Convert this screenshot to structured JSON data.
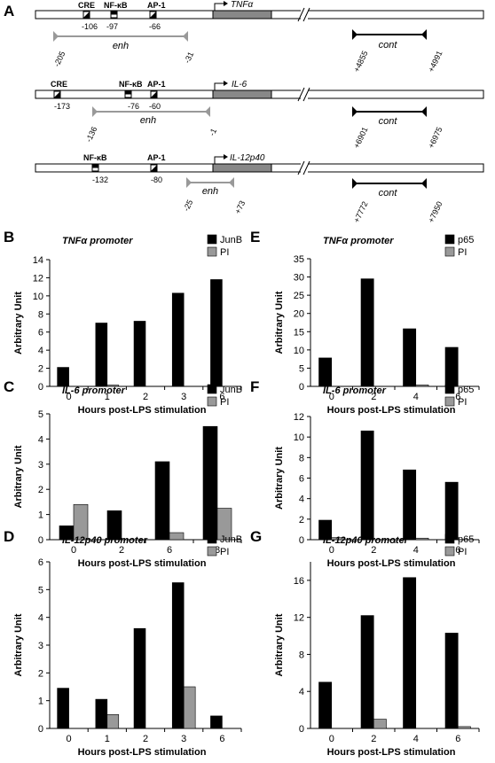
{
  "panel_a": {
    "letter": "A",
    "genes": [
      {
        "name": "TNFα",
        "sites": [
          {
            "label": "CRE",
            "pos": "-106"
          },
          {
            "label": "NF-κB",
            "pos": "-97"
          },
          {
            "label": "AP-1",
            "pos": "-66"
          }
        ],
        "enh": {
          "label": "enh",
          "start": "-205",
          "end": "-31"
        },
        "cont": {
          "label": "cont",
          "start": "+4855",
          "end": "+4991"
        }
      },
      {
        "name": "IL-6",
        "sites": [
          {
            "label": "CRE",
            "pos": "-173"
          },
          {
            "label": "NF-κB",
            "pos": "-76"
          },
          {
            "label": "AP-1",
            "pos": "-60"
          }
        ],
        "enh": {
          "label": "enh",
          "start": "-136",
          "end": "-1"
        },
        "cont": {
          "label": "cont",
          "start": "+6901",
          "end": "+6975"
        }
      },
      {
        "name": "IL-12p40",
        "sites": [
          {
            "label": "NF-κB",
            "pos": "-132"
          },
          {
            "label": "AP-1",
            "pos": "-80"
          }
        ],
        "enh": {
          "label": "enh",
          "start": "-25",
          "end": "+73"
        },
        "cont": {
          "label": "cont",
          "start": "+7772",
          "end": "+7950"
        }
      }
    ]
  },
  "colors": {
    "primary": "#000000",
    "secondary": "#999999",
    "enh_bracket": "#999999"
  },
  "chart_data": [
    {
      "id": "B",
      "type": "bar",
      "title": "TNFα promoter",
      "xlabel": "Hours post-LPS stimulation",
      "ylabel": "Arbitrary Unit",
      "categories": [
        "0",
        "1",
        "2",
        "3",
        "6"
      ],
      "ylim": [
        0,
        14
      ],
      "yticks": [
        "0",
        "2",
        "4",
        "6",
        "8",
        "10",
        "12",
        "14"
      ],
      "series": [
        {
          "name": "JunB",
          "values": [
            2.1,
            7.0,
            7.2,
            10.3,
            11.8
          ]
        },
        {
          "name": "PI",
          "values": [
            0,
            0.15,
            0,
            0,
            0
          ]
        }
      ],
      "legend": "top-right"
    },
    {
      "id": "C",
      "type": "bar",
      "title": "IL-6 promoter",
      "xlabel": "Hours post-LPS stimulation",
      "ylabel": "Arbitrary Unit",
      "categories": [
        "0",
        "2",
        "6",
        "8"
      ],
      "ylim": [
        0,
        5
      ],
      "yticks": [
        "0",
        "1",
        "2",
        "3",
        "4",
        "5"
      ],
      "series": [
        {
          "name": "JunB",
          "values": [
            0.55,
            1.15,
            3.1,
            4.5
          ]
        },
        {
          "name": "PI",
          "values": [
            1.4,
            0,
            0.28,
            1.25
          ]
        }
      ],
      "legend": "top-right"
    },
    {
      "id": "D",
      "type": "bar",
      "title": "IL-12p40 promoter",
      "xlabel": "Hours post-LPS stimulation",
      "ylabel": "Arbitrary Unit",
      "categories": [
        "0",
        "1",
        "2",
        "3",
        "6"
      ],
      "ylim": [
        0,
        6
      ],
      "yticks": [
        "0",
        "1",
        "2",
        "3",
        "4",
        "5",
        "6"
      ],
      "series": [
        {
          "name": "JunB",
          "values": [
            1.45,
            1.05,
            3.6,
            5.25,
            0.45
          ]
        },
        {
          "name": "PI",
          "values": [
            0,
            0.5,
            0,
            1.5,
            0
          ]
        }
      ],
      "legend": "top-right"
    },
    {
      "id": "E",
      "type": "bar",
      "title": "TNFα promoter",
      "xlabel": "Hours post-LPS stimulation",
      "ylabel": "Arbitrary Unit",
      "categories": [
        "0",
        "2",
        "4",
        "6"
      ],
      "ylim": [
        0,
        35
      ],
      "yticks": [
        "0",
        "5",
        "10",
        "15",
        "20",
        "25",
        "30",
        "35"
      ],
      "series": [
        {
          "name": "p65",
          "values": [
            7.8,
            29.5,
            15.8,
            10.7
          ]
        },
        {
          "name": "PI",
          "values": [
            0,
            0,
            0.4,
            0
          ]
        }
      ],
      "legend": "top-right"
    },
    {
      "id": "F",
      "type": "bar",
      "title": "IL-6 promoter",
      "xlabel": "Hours post-LPS stimulation",
      "ylabel": "Arbitrary Unit",
      "categories": [
        "0",
        "2",
        "4",
        "6"
      ],
      "ylim": [
        0,
        12
      ],
      "yticks": [
        "0",
        "2",
        "4",
        "6",
        "8",
        "10",
        "12"
      ],
      "series": [
        {
          "name": "p65",
          "values": [
            1.9,
            10.6,
            6.8,
            5.6
          ]
        },
        {
          "name": "PI",
          "values": [
            0.2,
            0,
            0.15,
            0
          ]
        }
      ],
      "legend": "top-right"
    },
    {
      "id": "G",
      "type": "bar",
      "title": "IL-12p40 promoter",
      "xlabel": "Hours post-LPS stimulation",
      "ylabel": "Arbitrary Unit",
      "categories": [
        "0",
        "2",
        "4",
        "6"
      ],
      "ylim": [
        0,
        18
      ],
      "yticks": [
        "0",
        "4",
        "8",
        "12",
        "16"
      ],
      "series": [
        {
          "name": "p65",
          "values": [
            5.0,
            12.2,
            16.3,
            10.3
          ]
        },
        {
          "name": "PI",
          "values": [
            0,
            1.0,
            0,
            0.2
          ]
        }
      ],
      "legend": "top-right"
    }
  ]
}
